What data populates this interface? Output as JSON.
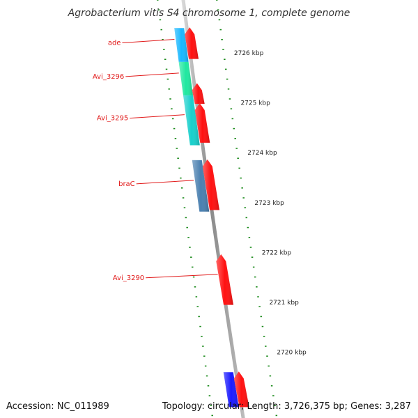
{
  "title": "Agrobacterium vitis S4 chromosome 1, complete genome",
  "accession": "Accession: NC_011989",
  "stats": "Topology: circular; Length: 3,726,375 bp; Genes: 3,287",
  "colors": {
    "forward": "#ff1111",
    "backbone": "#8a8a8a",
    "tick": "#1a8a1a",
    "label": "#e11a1a"
  },
  "scale": {
    "unit": "kbp",
    "ticks": [
      {
        "label": "2726 kbp",
        "pos": 2726
      },
      {
        "label": "2725 kbp",
        "pos": 2725
      },
      {
        "label": "2724 kbp",
        "pos": 2724
      },
      {
        "label": "2723 kbp",
        "pos": 2723
      },
      {
        "label": "2722 kbp",
        "pos": 2722
      },
      {
        "label": "2721 kbp",
        "pos": 2721
      },
      {
        "label": "2720 kbp",
        "pos": 2720
      }
    ]
  },
  "genes": [
    {
      "name": "ade",
      "start": 2726.5,
      "end": 2725.82,
      "strand": "reverse",
      "color": "#1ab8ff",
      "labeled": true
    },
    {
      "name": "",
      "start": 2726.5,
      "end": 2725.88,
      "strand": "forward",
      "color": "#ff1111",
      "labeled": false
    },
    {
      "name": "Avi_3296",
      "start": 2725.82,
      "end": 2725.15,
      "strand": "reverse",
      "color": "#20e8a0",
      "labeled": true
    },
    {
      "name": "",
      "start": 2725.38,
      "end": 2724.98,
      "strand": "forward",
      "color": "#ff1111",
      "labeled": false
    },
    {
      "name": "Avi_3295",
      "start": 2725.15,
      "end": 2724.15,
      "strand": "reverse",
      "color": "#19d0cc",
      "labeled": true
    },
    {
      "name": "",
      "start": 2724.98,
      "end": 2724.2,
      "strand": "forward",
      "color": "#ff1111",
      "labeled": false
    },
    {
      "name": "braC",
      "start": 2723.85,
      "end": 2722.82,
      "strand": "reverse",
      "color": "#4a80b0",
      "labeled": true
    },
    {
      "name": "",
      "start": 2723.85,
      "end": 2722.85,
      "strand": "forward",
      "color": "#ff1111",
      "labeled": false
    },
    {
      "name": "Avi_3290",
      "start": 2721.95,
      "end": 2720.95,
      "strand": "forward",
      "color": "#ff1111",
      "labeled": true
    },
    {
      "name": "",
      "start": 2719.6,
      "end": 2718.9,
      "strand": "reverse",
      "color": "#1a1aff",
      "labeled": false
    },
    {
      "name": "",
      "start": 2719.6,
      "end": 2718.9,
      "strand": "forward",
      "color": "#ff1111",
      "labeled": false
    }
  ]
}
